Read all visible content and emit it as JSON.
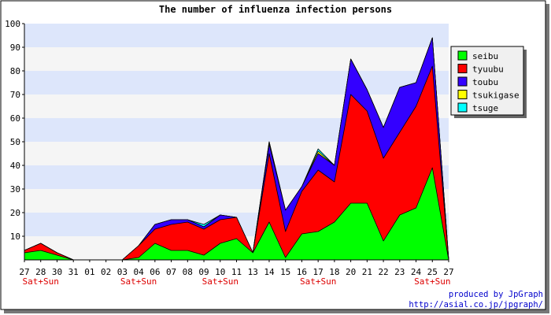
{
  "chart_data": {
    "type": "area",
    "stacked": true,
    "title": "The number of influenza infection persons",
    "xlabel": "",
    "ylabel": "",
    "ylim": [
      0,
      100
    ],
    "yticks": [
      10,
      20,
      30,
      40,
      50,
      60,
      70,
      80,
      90,
      100
    ],
    "grid": true,
    "legend_position": "right",
    "categories": [
      "27",
      "28",
      "30",
      "31",
      "01",
      "02",
      "03",
      "04",
      "06",
      "07",
      "08",
      "09",
      "10",
      "11",
      "13",
      "14",
      "15",
      "16",
      "17",
      "18",
      "20",
      "21",
      "22",
      "23",
      "24",
      "25",
      "27"
    ],
    "weekend_label": "Sat+Sun",
    "weekend_categories": [
      1,
      7,
      12,
      18,
      25
    ],
    "series": [
      {
        "name": "seibu",
        "color": "#00ff00",
        "values": [
          3,
          4,
          2,
          0,
          0,
          0,
          0,
          1,
          7,
          4,
          4,
          2,
          7,
          9,
          3,
          16,
          1,
          11,
          12,
          16,
          24,
          24,
          8,
          19,
          22,
          39,
          0
        ]
      },
      {
        "name": "tyuubu",
        "color": "#ff0000",
        "values": [
          1,
          3,
          1,
          0,
          0,
          0,
          0,
          5,
          6,
          11,
          12,
          11,
          10,
          9,
          0,
          29,
          11,
          18,
          26,
          17,
          46,
          39,
          35,
          35,
          43,
          43,
          0
        ]
      },
      {
        "name": "toubu",
        "color": "#3300ff",
        "values": [
          0,
          0,
          0,
          0,
          0,
          0,
          0,
          0,
          2,
          2,
          1,
          1,
          2,
          0,
          0,
          4,
          9,
          2,
          7,
          7,
          15,
          9,
          13,
          19,
          10,
          12,
          0
        ]
      },
      {
        "name": "tsukigase",
        "color": "#ffff00",
        "values": [
          0,
          0,
          0,
          0,
          0,
          0,
          0,
          0,
          0,
          0,
          0,
          0,
          0,
          0,
          0,
          1,
          0,
          0,
          1,
          0,
          0,
          0,
          0,
          0,
          0,
          0,
          0
        ]
      },
      {
        "name": "tsuge",
        "color": "#00ffff",
        "values": [
          0,
          0,
          0,
          0,
          0,
          0,
          0,
          0,
          0,
          0,
          0,
          1,
          0,
          0,
          0,
          0,
          0,
          0,
          1,
          0,
          0,
          0,
          0,
          0,
          0,
          0,
          0
        ]
      }
    ]
  },
  "credit": {
    "line1": "produced by JpGraph",
    "line2": "http://asial.co.jp/jpgraph/"
  }
}
